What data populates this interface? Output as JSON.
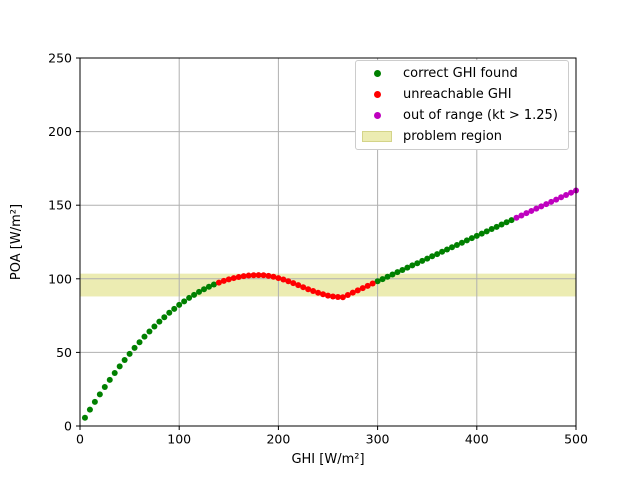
{
  "chart_data": {
    "type": "scatter",
    "title": "",
    "xlabel": "GHI [W/m²]",
    "ylabel": "POA [W/m²]",
    "xlim": [
      0,
      500
    ],
    "ylim": [
      0,
      250
    ],
    "x_ticks": [
      0,
      100,
      200,
      300,
      400,
      500
    ],
    "y_ticks": [
      0,
      50,
      100,
      150,
      200,
      250
    ],
    "grid": true,
    "grid_color": "#b0b0b0",
    "spine_color": "#000000",
    "problem_region": {
      "label": "problem region",
      "ymin": 88,
      "ymax": 103.5,
      "fill": "#bfbf00",
      "alpha": 0.3
    },
    "legend": {
      "position": "upper right",
      "entries": [
        {
          "label": "correct GHI found",
          "marker": "dot",
          "color": "#008000"
        },
        {
          "label": "unreachable GHI",
          "marker": "dot",
          "color": "#ff0000"
        },
        {
          "label": "out of range (kt > 1.25)",
          "marker": "dot",
          "color": "#bf00bf"
        },
        {
          "label": "problem region",
          "marker": "patch",
          "color": "#bfbf00"
        }
      ]
    },
    "series": [
      {
        "name": "correct GHI found",
        "color": "#008000",
        "points": [
          [
            5,
            5.6
          ],
          [
            10,
            11.1
          ],
          [
            15,
            16.4
          ],
          [
            20,
            21.5
          ],
          [
            25,
            26.5
          ],
          [
            30,
            31.3
          ],
          [
            35,
            36.0
          ],
          [
            40,
            40.5
          ],
          [
            45,
            44.8
          ],
          [
            50,
            49.0
          ],
          [
            55,
            53.1
          ],
          [
            60,
            56.9
          ],
          [
            65,
            60.7
          ],
          [
            70,
            64.2
          ],
          [
            75,
            67.6
          ],
          [
            80,
            70.9
          ],
          [
            85,
            73.9
          ],
          [
            90,
            76.9
          ],
          [
            95,
            79.6
          ],
          [
            100,
            82.3
          ],
          [
            105,
            84.7
          ],
          [
            110,
            87.0
          ],
          [
            115,
            89.1
          ],
          [
            120,
            91.1
          ],
          [
            125,
            92.9
          ],
          [
            130,
            94.6
          ],
          [
            135,
            96.1
          ],
          [
            300,
            98.3
          ],
          [
            305,
            99.8
          ],
          [
            310,
            101.4
          ],
          [
            315,
            102.9
          ],
          [
            320,
            104.5
          ],
          [
            325,
            106.0
          ],
          [
            330,
            107.6
          ],
          [
            335,
            109.1
          ],
          [
            340,
            110.6
          ],
          [
            345,
            112.2
          ],
          [
            350,
            113.7
          ],
          [
            355,
            115.3
          ],
          [
            360,
            116.8
          ],
          [
            365,
            118.4
          ],
          [
            370,
            119.9
          ],
          [
            375,
            121.4
          ],
          [
            380,
            123.0
          ],
          [
            385,
            124.5
          ],
          [
            390,
            126.1
          ],
          [
            395,
            127.6
          ],
          [
            400,
            129.2
          ],
          [
            405,
            130.7
          ],
          [
            410,
            132.2
          ],
          [
            415,
            133.8
          ],
          [
            420,
            135.3
          ],
          [
            425,
            136.9
          ],
          [
            430,
            138.4
          ],
          [
            435,
            139.9
          ]
        ]
      },
      {
        "name": "unreachable GHI",
        "color": "#ff0000",
        "points": [
          [
            140,
            97.4
          ],
          [
            145,
            98.6
          ],
          [
            150,
            99.6
          ],
          [
            155,
            100.5
          ],
          [
            160,
            101.2
          ],
          [
            165,
            101.8
          ],
          [
            170,
            102.2
          ],
          [
            175,
            102.4
          ],
          [
            180,
            102.5
          ],
          [
            185,
            102.4
          ],
          [
            190,
            102.0
          ],
          [
            195,
            101.4
          ],
          [
            200,
            100.5
          ],
          [
            205,
            99.5
          ],
          [
            210,
            98.3
          ],
          [
            215,
            97.1
          ],
          [
            220,
            95.7
          ],
          [
            225,
            94.3
          ],
          [
            230,
            92.9
          ],
          [
            235,
            91.7
          ],
          [
            240,
            90.5
          ],
          [
            245,
            89.5
          ],
          [
            250,
            88.6
          ],
          [
            255,
            88.0
          ],
          [
            260,
            87.6
          ],
          [
            265,
            87.5
          ],
          [
            270,
            89.0
          ],
          [
            275,
            90.6
          ],
          [
            280,
            92.1
          ],
          [
            285,
            93.7
          ],
          [
            290,
            95.2
          ],
          [
            295,
            96.8
          ]
        ]
      },
      {
        "name": "out of range (kt > 1.25)",
        "color": "#bf00bf",
        "points": [
          [
            440,
            141.5
          ],
          [
            445,
            143.0
          ],
          [
            450,
            144.6
          ],
          [
            455,
            146.1
          ],
          [
            460,
            147.7
          ],
          [
            465,
            149.2
          ],
          [
            470,
            150.7
          ],
          [
            475,
            152.3
          ],
          [
            480,
            153.8
          ],
          [
            485,
            155.4
          ],
          [
            490,
            156.9
          ],
          [
            495,
            158.5
          ],
          [
            500,
            160.0
          ]
        ]
      }
    ]
  }
}
